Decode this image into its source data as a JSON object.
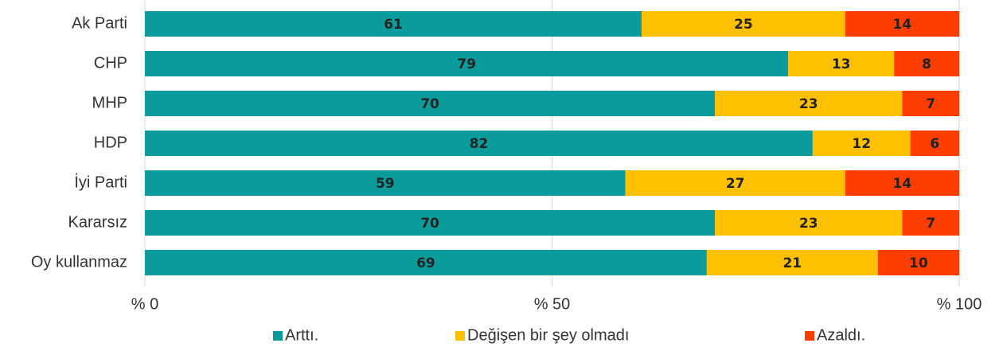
{
  "chart_data": {
    "type": "stacked_barh",
    "categories": [
      "Ak Parti",
      "CHP",
      "MHP",
      "HDP",
      "İyi Parti",
      "Kararsız",
      "Oy kullanmaz"
    ],
    "series": [
      {
        "name": "Arttı.",
        "color": "#0a9b9a",
        "values": [
          61,
          79,
          70,
          82,
          59,
          70,
          69
        ]
      },
      {
        "name": "Değişen bir şey olmadı",
        "color": "#ffc000",
        "values": [
          25,
          13,
          23,
          12,
          27,
          23,
          21
        ]
      },
      {
        "name": "Azaldı.",
        "color": "#fe3d00",
        "values": [
          14,
          8,
          7,
          6,
          14,
          7,
          10
        ]
      }
    ],
    "xlim": [
      0,
      100
    ],
    "xticks": [
      {
        "value": 0,
        "label": "% 0"
      },
      {
        "value": 50,
        "label": "% 50"
      },
      {
        "value": 100,
        "label": "% 100"
      }
    ],
    "grid": true,
    "legend": "bottom"
  }
}
